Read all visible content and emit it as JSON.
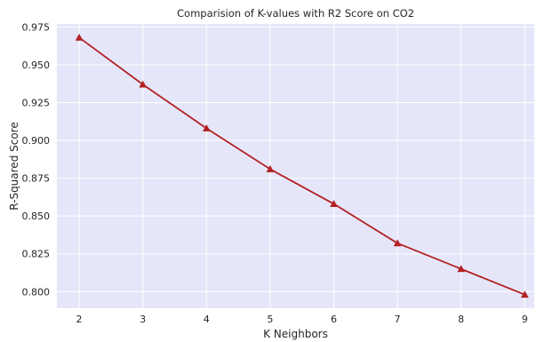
{
  "chart_data": {
    "type": "line",
    "title": "Comparision of K-values with R2 Score on CO2",
    "xlabel": "K Neighbors",
    "ylabel": "R-Squared Score",
    "x": [
      2,
      3,
      4,
      5,
      6,
      7,
      8,
      9
    ],
    "series": [
      {
        "values": [
          0.968,
          0.937,
          0.908,
          0.881,
          0.858,
          0.832,
          0.815,
          0.798
        ],
        "color": "#b22222",
        "marker": "triangle-up"
      }
    ],
    "xticks": [
      "2",
      "3",
      "4",
      "5",
      "6",
      "7",
      "8",
      "9"
    ],
    "yticks": [
      "0.800",
      "0.825",
      "0.850",
      "0.875",
      "0.900",
      "0.925",
      "0.950",
      "0.975"
    ],
    "xlim": [
      1.65,
      9.15
    ],
    "ylim": [
      0.789,
      0.977
    ],
    "grid": true,
    "background_color": "#e6e6fa",
    "grid_color": "#ffffff"
  }
}
